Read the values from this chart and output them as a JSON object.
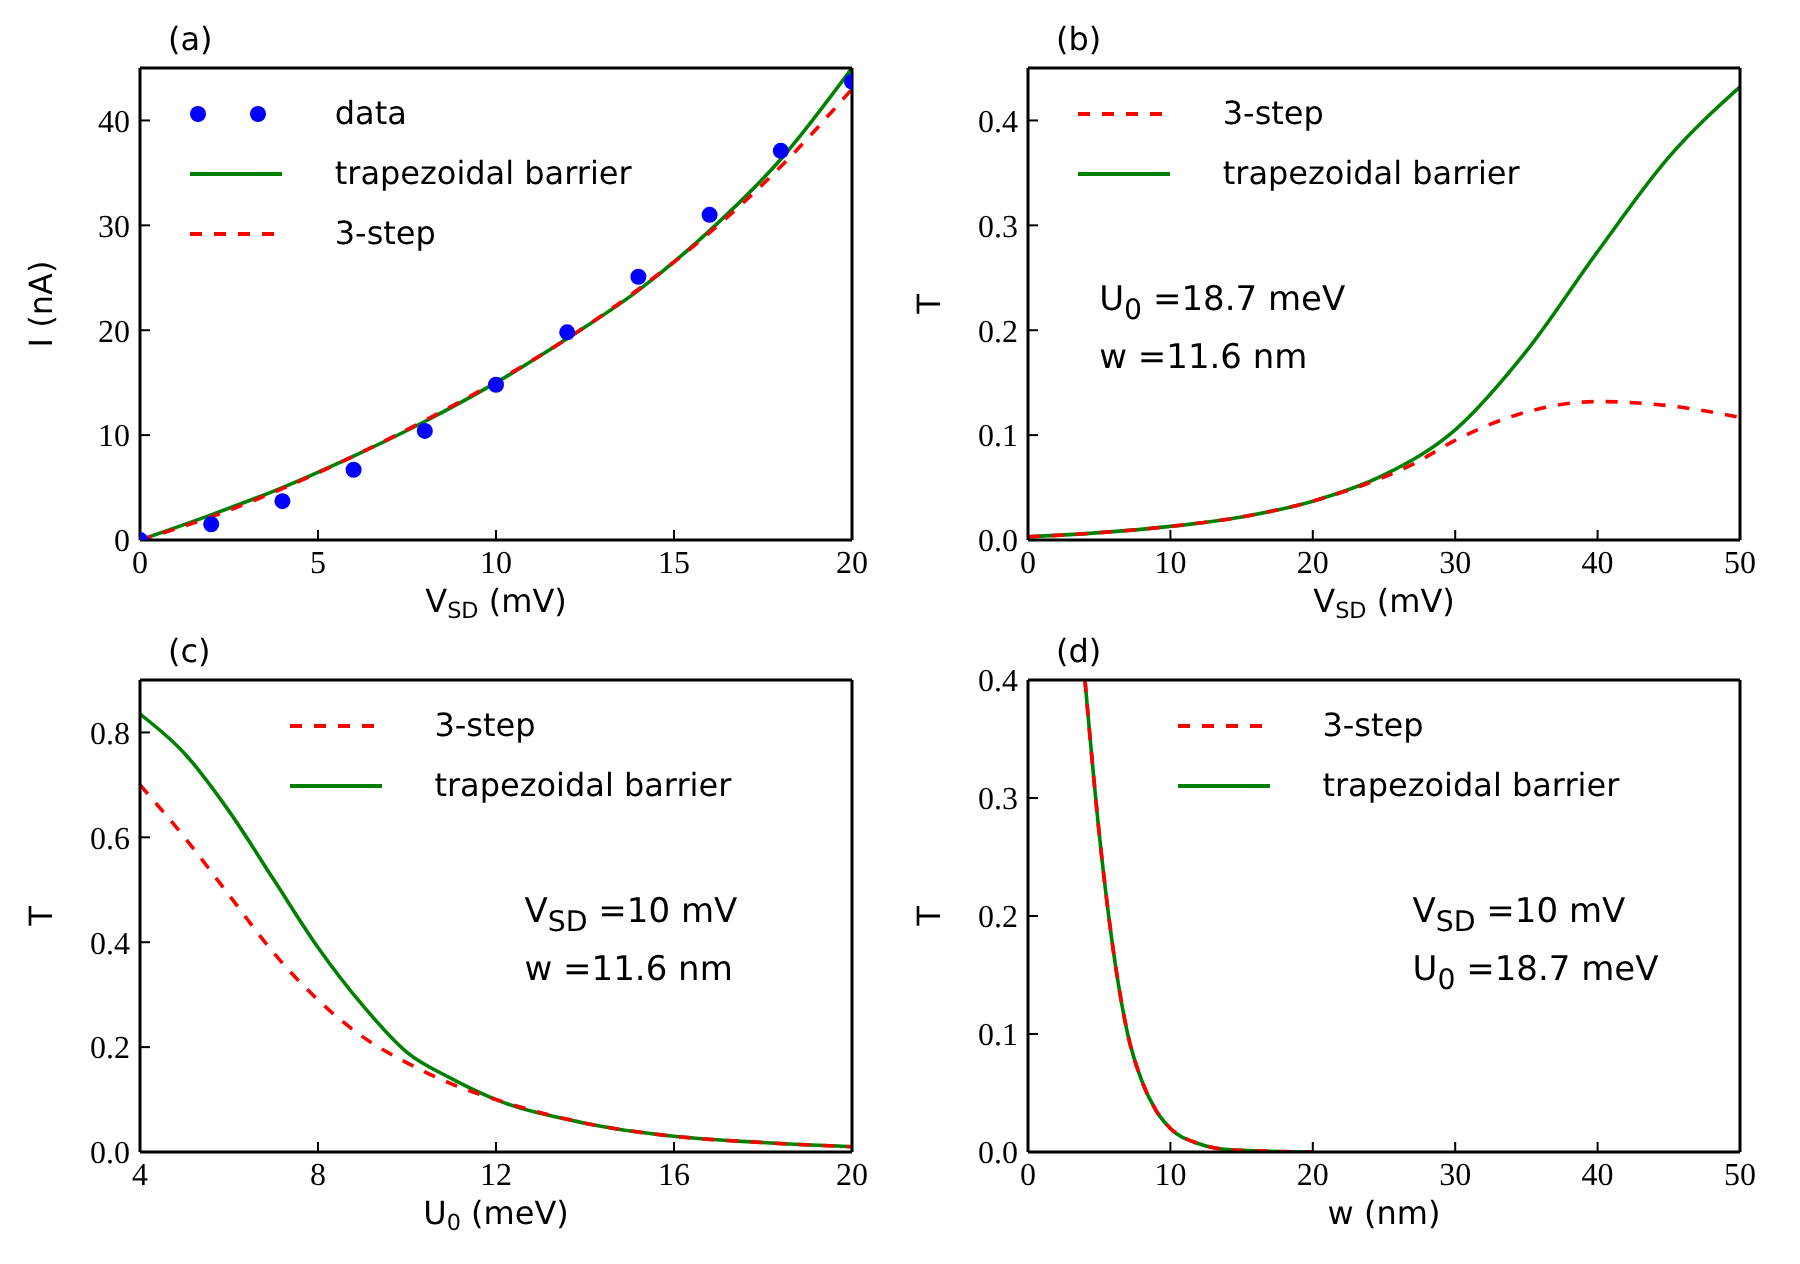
{
  "chart_data": [
    {
      "type": "line",
      "title": "(a)",
      "xlabel": "V$_{SD}$ (mV)",
      "ylabel": "I (nA)",
      "xlim": [
        0,
        20
      ],
      "xticks": [
        0,
        5,
        10,
        15,
        20
      ],
      "ylim": [
        0,
        45
      ],
      "yticks": [
        0,
        10,
        20,
        30,
        40
      ],
      "grid": false,
      "legend": "top left",
      "series": [
        {
          "name": "data",
          "type": "scatter",
          "marker": "circle",
          "color": "#0000ff",
          "x": [
            0,
            2,
            4,
            6,
            8,
            10,
            12,
            14,
            16,
            18,
            20
          ],
          "values": [
            0,
            1.5,
            3.7,
            6.7,
            10.4,
            14.8,
            19.8,
            25.1,
            31,
            37.1,
            43.7
          ]
        },
        {
          "name": "trapezoidal barrier",
          "color": "#008000",
          "line_style": "solid",
          "x": [
            0,
            2,
            4,
            6,
            8,
            10,
            12,
            14,
            16,
            18,
            20
          ],
          "values": [
            0,
            2.4,
            5,
            8,
            11.3,
            15,
            19.2,
            23.8,
            29.5,
            36.3,
            45
          ]
        },
        {
          "name": "3-step",
          "color": "#ff0000",
          "line_style": "dashed",
          "x": [
            0,
            2,
            4,
            6,
            8,
            10,
            12,
            14,
            16,
            18,
            20
          ],
          "values": [
            0,
            2.2,
            4.9,
            8,
            11.4,
            15.1,
            19.2,
            23.9,
            29.3,
            35.6,
            43
          ]
        }
      ]
    },
    {
      "type": "line",
      "title": "(b)",
      "xlabel": "V$_{SD}$ (mV)",
      "ylabel": "T",
      "xlim": [
        0,
        50
      ],
      "xticks": [
        0,
        10,
        20,
        30,
        40,
        50
      ],
      "ylim": [
        0,
        0.45
      ],
      "yticks": [
        {
          "value": 0,
          "label": "0.0"
        },
        {
          "value": 0.1,
          "label": "0.1"
        },
        {
          "value": 0.2,
          "label": "0.2"
        },
        {
          "value": 0.3,
          "label": "0.3"
        },
        {
          "value": 0.4,
          "label": "0.4"
        }
      ],
      "grid": false,
      "legend": "top left",
      "annotations": [
        "U$_{0}$ =18.7 meV",
        "w =11.6 nm"
      ],
      "series": [
        {
          "name": "3-step",
          "color": "#ff0000",
          "line_style": "dashed",
          "x": [
            0,
            5,
            10,
            15,
            20,
            25,
            27,
            30,
            35,
            40,
            45,
            50
          ],
          "values": [
            0.003,
            0.007,
            0.013,
            0.022,
            0.037,
            0.06,
            0.072,
            0.095,
            0.122,
            0.132,
            0.128,
            0.117
          ]
        },
        {
          "name": "trapezoidal barrier",
          "color": "#008000",
          "line_style": "solid",
          "x": [
            0,
            5,
            10,
            15,
            20,
            25,
            30,
            35,
            40,
            45,
            50
          ],
          "values": [
            0.003,
            0.007,
            0.013,
            0.022,
            0.037,
            0.062,
            0.105,
            0.18,
            0.275,
            0.365,
            0.432
          ]
        }
      ]
    },
    {
      "type": "line",
      "title": "(c)",
      "xlabel": "U$_{0}$ (meV)",
      "ylabel": "T",
      "xlim": [
        4,
        20
      ],
      "xticks": [
        4,
        8,
        12,
        16,
        20
      ],
      "ylim": [
        0,
        0.9
      ],
      "yticks": [
        {
          "value": 0,
          "label": "0.0"
        },
        {
          "value": 0.2,
          "label": "0.2"
        },
        {
          "value": 0.4,
          "label": "0.4"
        },
        {
          "value": 0.6,
          "label": "0.6"
        },
        {
          "value": 0.8,
          "label": "0.8"
        }
      ],
      "grid": false,
      "legend": "top",
      "annotations": [
        "V$_{SD}$ =10 mV",
        "w =11.6 nm"
      ],
      "series": [
        {
          "name": "3-step",
          "color": "#ff0000",
          "line_style": "dashed",
          "x": [
            4,
            5,
            6,
            7,
            8,
            9,
            10,
            11,
            12,
            14,
            16,
            18,
            20
          ],
          "values": [
            0.7,
            0.6,
            0.49,
            0.38,
            0.29,
            0.22,
            0.17,
            0.13,
            0.1,
            0.055,
            0.03,
            0.018,
            0.01
          ]
        },
        {
          "name": "trapezoidal barrier",
          "color": "#008000",
          "line_style": "solid",
          "x": [
            4,
            5,
            6,
            7,
            8,
            9,
            10,
            11,
            12,
            14,
            16,
            18,
            20
          ],
          "values": [
            0.835,
            0.76,
            0.65,
            0.52,
            0.39,
            0.28,
            0.19,
            0.14,
            0.1,
            0.055,
            0.03,
            0.018,
            0.01
          ]
        }
      ]
    },
    {
      "type": "line",
      "title": "(d)",
      "xlabel": "w (nm)",
      "ylabel": "T",
      "xlim": [
        0,
        50
      ],
      "xticks": [
        0,
        10,
        20,
        30,
        40,
        50
      ],
      "ylim": [
        0,
        0.4
      ],
      "yticks": [
        {
          "value": 0,
          "label": "0.0"
        },
        {
          "value": 0.1,
          "label": "0.1"
        },
        {
          "value": 0.2,
          "label": "0.2"
        },
        {
          "value": 0.3,
          "label": "0.3"
        },
        {
          "value": 0.4,
          "label": "0.4"
        }
      ],
      "grid": false,
      "legend": "top",
      "annotations": [
        "V$_{SD}$ =10 mV",
        "U$_{0}$ =18.7 meV"
      ],
      "series": [
        {
          "name": "3-step",
          "color": "#ff0000",
          "line_style": "dashed",
          "x": [
            4,
            5,
            6,
            7,
            8,
            9,
            10,
            12,
            14,
            16,
            20
          ],
          "values": [
            0.4,
            0.27,
            0.17,
            0.1,
            0.06,
            0.035,
            0.02,
            0.007,
            0.002,
            0.001,
            0
          ]
        },
        {
          "name": "trapezoidal barrier",
          "color": "#008000",
          "line_style": "solid",
          "x": [
            4,
            5,
            6,
            7,
            8,
            9,
            10,
            12,
            14,
            16,
            20
          ],
          "values": [
            0.4,
            0.27,
            0.17,
            0.1,
            0.06,
            0.035,
            0.02,
            0.007,
            0.002,
            0.001,
            0
          ]
        }
      ]
    }
  ]
}
